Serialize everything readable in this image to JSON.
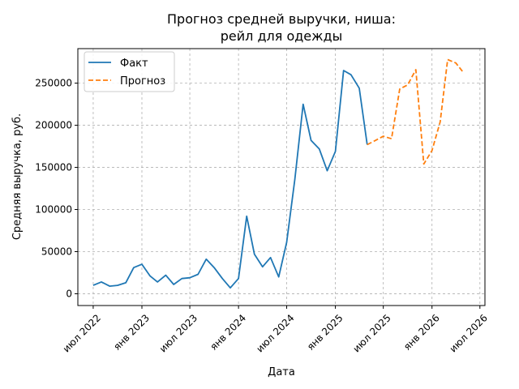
{
  "chart_data": {
    "type": "line",
    "title": "Прогноз средней выручки, ниша:\nрейл для одежды",
    "xlabel": "Дата",
    "ylabel": "Средняя выручка, руб.",
    "x_range": [
      "2022-05-04",
      "2026-07-20"
    ],
    "ylim": [
      -14000,
      291000
    ],
    "grid": true,
    "legend_position": "top-left",
    "x_ticks": [
      {
        "date": "2022-07-01",
        "label": "июл 2022"
      },
      {
        "date": "2023-01-01",
        "label": "янв 2023"
      },
      {
        "date": "2023-07-01",
        "label": "июл 2023"
      },
      {
        "date": "2024-01-01",
        "label": "янв 2024"
      },
      {
        "date": "2024-07-01",
        "label": "июл 2024"
      },
      {
        "date": "2025-01-01",
        "label": "янв 2025"
      },
      {
        "date": "2025-07-01",
        "label": "июл 2025"
      },
      {
        "date": "2026-01-01",
        "label": "янв 2026"
      },
      {
        "date": "2026-07-01",
        "label": "июл 2026"
      }
    ],
    "y_ticks": [
      {
        "value": 0,
        "label": "0"
      },
      {
        "value": 50000,
        "label": "50000"
      },
      {
        "value": 100000,
        "label": "100000"
      },
      {
        "value": 150000,
        "label": "150000"
      },
      {
        "value": 200000,
        "label": "200000"
      },
      {
        "value": 250000,
        "label": "250000"
      }
    ],
    "series": [
      {
        "name": "Факт",
        "color": "#1f77b4",
        "style": "solid",
        "points": [
          {
            "x": "2022-07-01",
            "y": 10000
          },
          {
            "x": "2022-08-01",
            "y": 14000
          },
          {
            "x": "2022-09-01",
            "y": 9000
          },
          {
            "x": "2022-10-01",
            "y": 10000
          },
          {
            "x": "2022-11-01",
            "y": 13000
          },
          {
            "x": "2022-12-01",
            "y": 31000
          },
          {
            "x": "2023-01-01",
            "y": 35000
          },
          {
            "x": "2023-02-01",
            "y": 21000
          },
          {
            "x": "2023-03-01",
            "y": 14000
          },
          {
            "x": "2023-04-01",
            "y": 22000
          },
          {
            "x": "2023-05-01",
            "y": 11000
          },
          {
            "x": "2023-06-01",
            "y": 18000
          },
          {
            "x": "2023-07-01",
            "y": 19000
          },
          {
            "x": "2023-08-01",
            "y": 23000
          },
          {
            "x": "2023-09-01",
            "y": 41000
          },
          {
            "x": "2023-10-01",
            "y": 31000
          },
          {
            "x": "2023-11-01",
            "y": 18000
          },
          {
            "x": "2023-12-01",
            "y": 7000
          },
          {
            "x": "2024-01-01",
            "y": 18000
          },
          {
            "x": "2024-02-01",
            "y": 92000
          },
          {
            "x": "2024-03-01",
            "y": 47000
          },
          {
            "x": "2024-04-01",
            "y": 32000
          },
          {
            "x": "2024-05-01",
            "y": 43000
          },
          {
            "x": "2024-06-01",
            "y": 20000
          },
          {
            "x": "2024-07-01",
            "y": 61000
          },
          {
            "x": "2024-08-01",
            "y": 136000
          },
          {
            "x": "2024-09-01",
            "y": 225000
          },
          {
            "x": "2024-10-01",
            "y": 182000
          },
          {
            "x": "2024-11-01",
            "y": 172000
          },
          {
            "x": "2024-12-01",
            "y": 146000
          },
          {
            "x": "2025-01-01",
            "y": 169000
          },
          {
            "x": "2025-02-01",
            "y": 265000
          },
          {
            "x": "2025-03-01",
            "y": 260000
          },
          {
            "x": "2025-04-01",
            "y": 244000
          },
          {
            "x": "2025-05-01",
            "y": 177000
          }
        ]
      },
      {
        "name": "Прогноз",
        "color": "#ff7f0e",
        "style": "dashed",
        "points": [
          {
            "x": "2025-05-01",
            "y": 177000
          },
          {
            "x": "2025-06-01",
            "y": 182000
          },
          {
            "x": "2025-07-01",
            "y": 187000
          },
          {
            "x": "2025-08-01",
            "y": 184000
          },
          {
            "x": "2025-09-01",
            "y": 243000
          },
          {
            "x": "2025-10-01",
            "y": 248000
          },
          {
            "x": "2025-11-01",
            "y": 266000
          },
          {
            "x": "2025-12-01",
            "y": 154000
          },
          {
            "x": "2026-01-01",
            "y": 170000
          },
          {
            "x": "2026-02-01",
            "y": 204000
          },
          {
            "x": "2026-03-01",
            "y": 278000
          },
          {
            "x": "2026-04-01",
            "y": 274000
          },
          {
            "x": "2026-05-01",
            "y": 262000
          }
        ]
      }
    ]
  }
}
